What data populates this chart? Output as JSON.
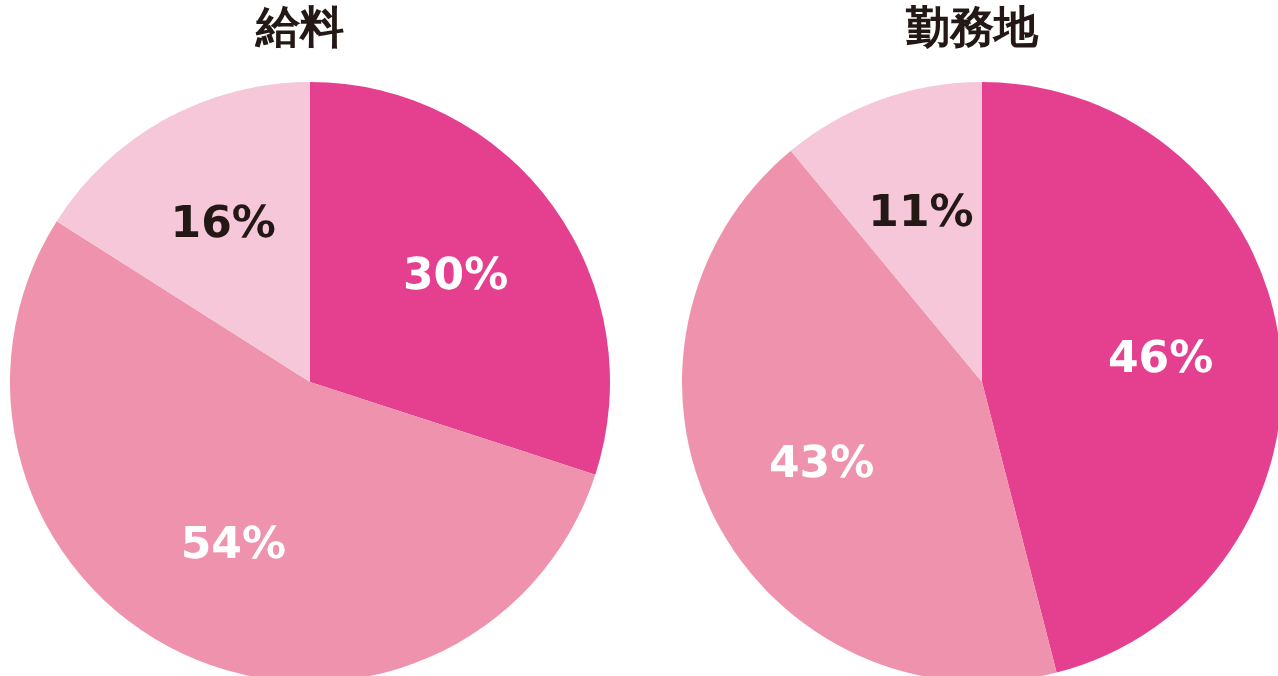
{
  "chart_data": [
    {
      "type": "pie",
      "title": "給料",
      "categories": [
        null,
        null,
        null
      ],
      "values": [
        30,
        54,
        16
      ],
      "colors": [
        "#e5408f",
        "#ee92ad",
        "#f6c6d9"
      ],
      "value_labels": [
        "30%",
        "54%",
        "16%"
      ]
    },
    {
      "type": "pie",
      "title": "勤務地",
      "categories": [
        null,
        null,
        null
      ],
      "values": [
        46,
        43,
        11
      ],
      "colors": [
        "#e5408f",
        "#ee92ad",
        "#f6c6d9"
      ],
      "value_labels": [
        "46%",
        "43%",
        "11%"
      ]
    }
  ]
}
